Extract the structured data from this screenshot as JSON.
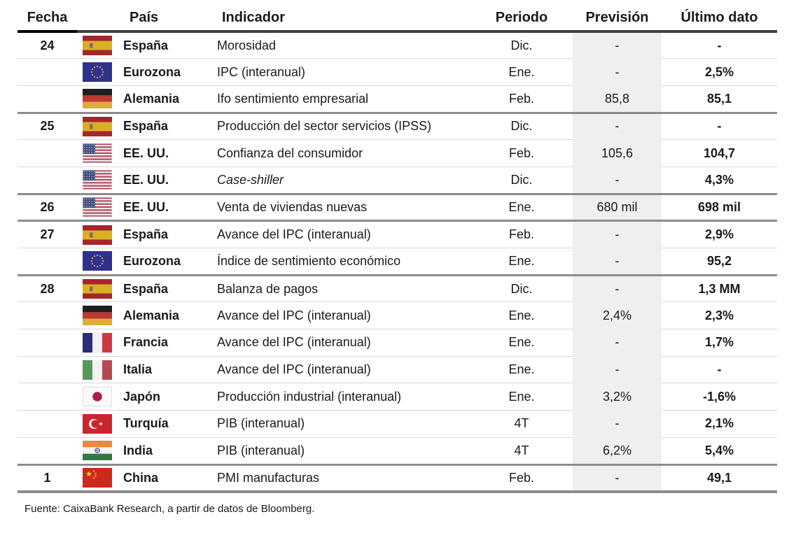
{
  "table": {
    "headers": {
      "fecha": "Fecha",
      "pais": "País",
      "indicador": "Indicador",
      "periodo": "Periodo",
      "prevision": "Previsión",
      "ultimo": "Último dato"
    },
    "rows": [
      {
        "fecha": "24",
        "flag": "es",
        "flag_name": "spain-flag-icon",
        "pais": "España",
        "indicador": "Morosidad",
        "periodo": "Dic.",
        "prevision": "-",
        "ultimo": "-",
        "group_start": true,
        "italic": false
      },
      {
        "fecha": "",
        "flag": "eu",
        "flag_name": "eurozone-flag-icon",
        "pais": "Eurozona",
        "indicador": "IPC (interanual)",
        "periodo": "Ene.",
        "prevision": "-",
        "ultimo": "2,5%",
        "group_start": false,
        "italic": false
      },
      {
        "fecha": "",
        "flag": "de",
        "flag_name": "germany-flag-icon",
        "pais": "Alemania",
        "indicador": "Ifo sentimiento empresarial",
        "periodo": "Feb.",
        "prevision": "85,8",
        "ultimo": "85,1",
        "group_start": false,
        "italic": false
      },
      {
        "fecha": "25",
        "flag": "es",
        "flag_name": "spain-flag-icon",
        "pais": "España",
        "indicador": "Producción del sector servicios (IPSS)",
        "periodo": "Dic.",
        "prevision": "-",
        "ultimo": "-",
        "group_start": true,
        "italic": false
      },
      {
        "fecha": "",
        "flag": "us",
        "flag_name": "usa-flag-icon",
        "pais": "EE. UU.",
        "indicador": "Confianza del consumidor",
        "periodo": "Feb.",
        "prevision": "105,6",
        "ultimo": "104,7",
        "group_start": false,
        "italic": false
      },
      {
        "fecha": "",
        "flag": "us",
        "flag_name": "usa-flag-icon",
        "pais": "EE. UU.",
        "indicador": "Case-shiller",
        "periodo": "Dic.",
        "prevision": "-",
        "ultimo": "4,3%",
        "group_start": false,
        "italic": true
      },
      {
        "fecha": "26",
        "flag": "us",
        "flag_name": "usa-flag-icon",
        "pais": "EE. UU.",
        "indicador": "Venta de viviendas nuevas",
        "periodo": "Ene.",
        "prevision": "680 mil",
        "ultimo": "698 mil",
        "group_start": true,
        "italic": false
      },
      {
        "fecha": "27",
        "flag": "es",
        "flag_name": "spain-flag-icon",
        "pais": "España",
        "indicador": "Avance del IPC (interanual)",
        "periodo": "Feb.",
        "prevision": "-",
        "ultimo": "2,9%",
        "group_start": true,
        "italic": false
      },
      {
        "fecha": "",
        "flag": "eu",
        "flag_name": "eurozone-flag-icon",
        "pais": "Eurozona",
        "indicador": "Índice de sentimiento económico",
        "periodo": "Ene.",
        "prevision": "-",
        "ultimo": "95,2",
        "group_start": false,
        "italic": false
      },
      {
        "fecha": "28",
        "flag": "es",
        "flag_name": "spain-flag-icon",
        "pais": "España",
        "indicador": "Balanza de pagos",
        "periodo": "Dic.",
        "prevision": "-",
        "ultimo": "1,3 MM",
        "group_start": true,
        "italic": false
      },
      {
        "fecha": "",
        "flag": "de",
        "flag_name": "germany-flag-icon",
        "pais": "Alemania",
        "indicador": "Avance del IPC (interanual)",
        "periodo": "Ene.",
        "prevision": "2,4%",
        "ultimo": "2,3%",
        "group_start": false,
        "italic": false
      },
      {
        "fecha": "",
        "flag": "fr",
        "flag_name": "france-flag-icon",
        "pais": "Francia",
        "indicador": "Avance del IPC (interanual)",
        "periodo": "Ene.",
        "prevision": "-",
        "ultimo": "1,7%",
        "group_start": false,
        "italic": false
      },
      {
        "fecha": "",
        "flag": "it",
        "flag_name": "italy-flag-icon",
        "pais": "Italia",
        "indicador": "Avance del IPC (interanual)",
        "periodo": "Ene.",
        "prevision": "-",
        "ultimo": "-",
        "group_start": false,
        "italic": false
      },
      {
        "fecha": "",
        "flag": "jp",
        "flag_name": "japan-flag-icon",
        "pais": "Japón",
        "indicador": "Producción industrial (interanual)",
        "periodo": "Ene.",
        "prevision": "3,2%",
        "ultimo": "-1,6%",
        "group_start": false,
        "italic": false
      },
      {
        "fecha": "",
        "flag": "tr",
        "flag_name": "turkey-flag-icon",
        "pais": "Turquía",
        "indicador": "PIB (interanual)",
        "periodo": "4T",
        "prevision": "-",
        "ultimo": "2,1%",
        "group_start": false,
        "italic": false
      },
      {
        "fecha": "",
        "flag": "in",
        "flag_name": "india-flag-icon",
        "pais": "India",
        "indicador": "PIB (interanual)",
        "periodo": "4T",
        "prevision": "6,2%",
        "ultimo": "5,4%",
        "group_start": false,
        "italic": false
      },
      {
        "fecha": "1",
        "flag": "cn",
        "flag_name": "china-flag-icon",
        "pais": "China",
        "indicador": "PMI manufacturas",
        "periodo": "Feb.",
        "prevision": "-",
        "ultimo": "49,1",
        "group_start": true,
        "italic": false
      }
    ],
    "footer": "Fuente: CaixaBank Research, a partir de datos de Bloomberg."
  },
  "colors": {
    "ink": "#1a1a1a",
    "band": "#f0efef",
    "thin": "#d9d9d9",
    "thick": "#8c8c8c",
    "headline": "#3f3f3f",
    "fechaline": "#000000"
  }
}
